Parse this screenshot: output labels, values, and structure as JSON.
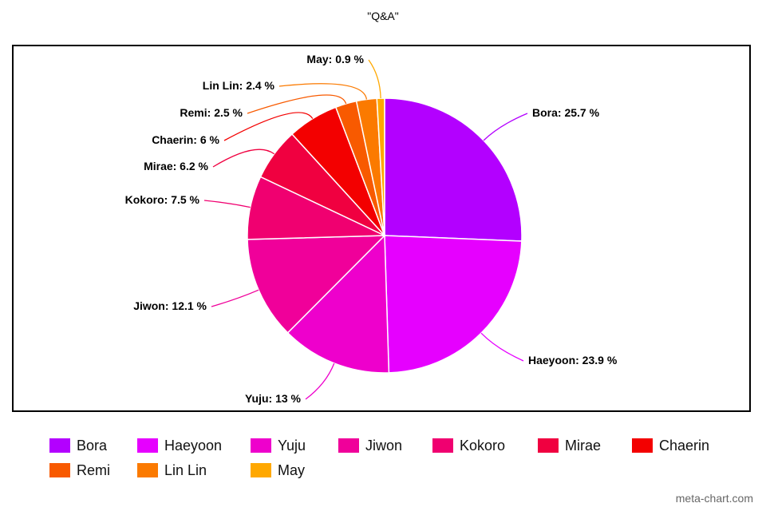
{
  "chart_data": {
    "type": "pie",
    "title": "\"Q&A\"",
    "slices": [
      {
        "label": "Bora",
        "value": 25.7,
        "display": "Bora: 25.7 %",
        "color": "#b300ff"
      },
      {
        "label": "Haeyoon",
        "value": 23.9,
        "display": "Haeyoon: 23.9 %",
        "color": "#e600ff"
      },
      {
        "label": "Yuju",
        "value": 13,
        "display": "Yuju: 13 %",
        "color": "#ee00cc"
      },
      {
        "label": "Jiwon",
        "value": 12.1,
        "display": "Jiwon: 12.1 %",
        "color": "#f0009a"
      },
      {
        "label": "Kokoro",
        "value": 7.5,
        "display": "Kokoro: 7.5 %",
        "color": "#f00070"
      },
      {
        "label": "Mirae",
        "value": 6.2,
        "display": "Mirae: 6.2 %",
        "color": "#f00040"
      },
      {
        "label": "Chaerin",
        "value": 6,
        "display": "Chaerin: 6 %",
        "color": "#f30000"
      },
      {
        "label": "Remi",
        "value": 2.5,
        "display": "Remi: 2.5 %",
        "color": "#f85a00"
      },
      {
        "label": "Lin Lin",
        "value": 2.4,
        "display": "Lin Lin: 2.4 %",
        "color": "#fb7a00"
      },
      {
        "label": "May",
        "value": 0.9,
        "display": "May: 0.9 %",
        "color": "#ffa800"
      }
    ],
    "legend_position": "bottom"
  },
  "watermark": "meta-chart.com"
}
